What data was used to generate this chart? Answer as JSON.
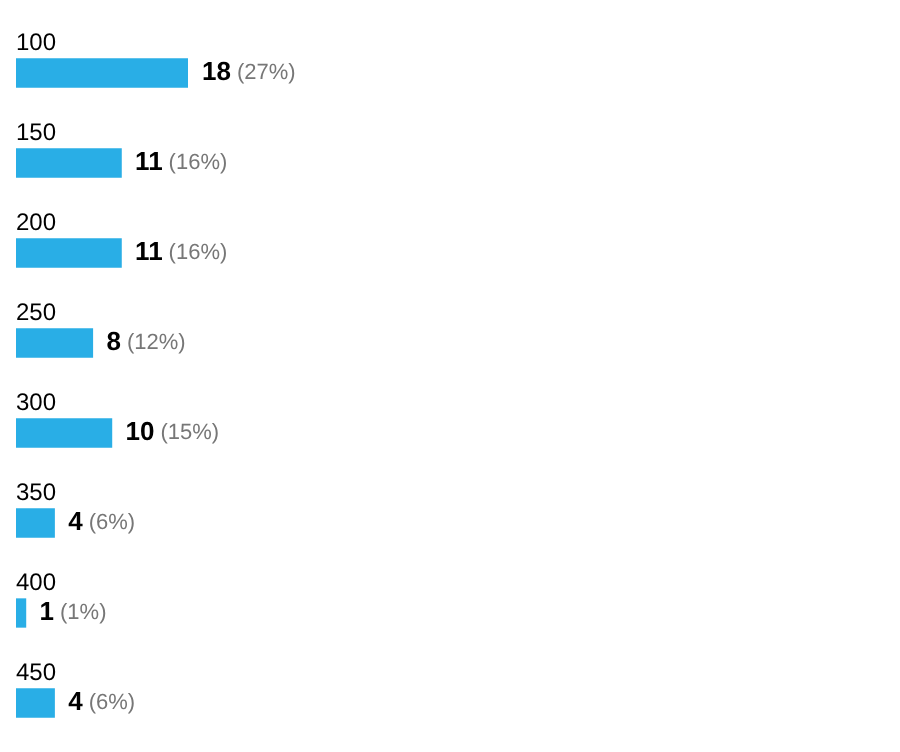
{
  "chart_data": {
    "type": "bar",
    "orientation": "horizontal",
    "categories": [
      "100",
      "150",
      "200",
      "250",
      "300",
      "350",
      "400",
      "450"
    ],
    "values": [
      18,
      11,
      11,
      8,
      10,
      4,
      1,
      4
    ],
    "value_labels": [
      "18 (27%)",
      "11 (16%)",
      "11 (16%)",
      "8 (12%)",
      "10 (15%)",
      "4 (6%)",
      "1 (1%)",
      "4 (6%)"
    ],
    "color": "#29aee6",
    "legend": false,
    "tick_labels": "y"
  }
}
